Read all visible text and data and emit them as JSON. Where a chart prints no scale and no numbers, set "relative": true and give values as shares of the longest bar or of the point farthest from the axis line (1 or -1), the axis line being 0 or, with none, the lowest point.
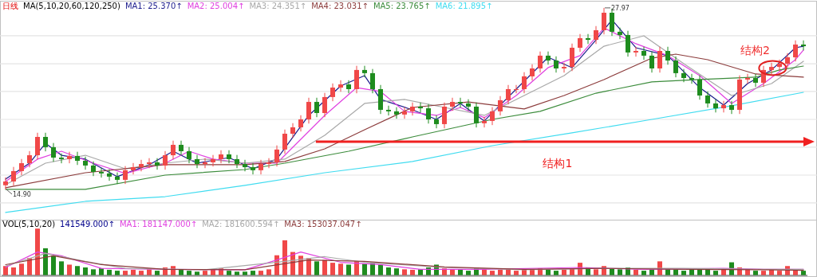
{
  "chart_data": [
    {
      "type": "candlestick",
      "title": "日线",
      "subtitle": "MA(5,10,20,60,120,250)",
      "categories": [
        null,
        null,
        null,
        null,
        null,
        null,
        null,
        null,
        null,
        null,
        null,
        null,
        null,
        null,
        null,
        null,
        null,
        null,
        null,
        null,
        null,
        null,
        null,
        null,
        null,
        null,
        null,
        null,
        null,
        null,
        null,
        null,
        null,
        null,
        null,
        null,
        null,
        null,
        null,
        null,
        null,
        null,
        null,
        null,
        null,
        null,
        null,
        null,
        null,
        null,
        null,
        null,
        null,
        null,
        null,
        null,
        null,
        null,
        null,
        null,
        null,
        null,
        null,
        null,
        null,
        null,
        null,
        null,
        null,
        null,
        null,
        null,
        null,
        null,
        null,
        null,
        null,
        null,
        null,
        null,
        null,
        null,
        null,
        null,
        null,
        null,
        null,
        null,
        null,
        null,
        null,
        null,
        null,
        null,
        null,
        null,
        null,
        null,
        null,
        null,
        null
      ],
      "ohlc": [
        [
          15.2,
          15.77,
          14.9,
          15.47
        ],
        [
          15.47,
          16.52,
          15.17,
          16.22
        ],
        [
          16.22,
          17.09,
          15.92,
          16.79
        ],
        [
          16.79,
          17.66,
          16.49,
          17.36
        ],
        [
          17.36,
          18.98,
          17.06,
          18.68
        ],
        [
          18.68,
          18.98,
          17.64,
          17.94
        ],
        [
          17.94,
          18.24,
          16.89,
          17.19
        ],
        [
          17.19,
          17.49,
          16.78,
          17.08
        ],
        [
          17.08,
          17.61,
          16.78,
          17.31
        ],
        [
          17.31,
          17.61,
          16.66,
          16.96
        ],
        [
          16.96,
          17.26,
          16.32,
          16.62
        ],
        [
          16.62,
          16.92,
          15.86,
          16.16
        ],
        [
          16.16,
          16.46,
          15.75,
          16.05
        ],
        [
          16.05,
          16.35,
          15.52,
          15.82
        ],
        [
          15.82,
          16.12,
          15.29,
          15.59
        ],
        [
          15.59,
          16.58,
          15.29,
          16.28
        ],
        [
          16.28,
          16.8,
          15.98,
          16.5
        ],
        [
          16.5,
          17.03,
          16.2,
          16.73
        ],
        [
          16.73,
          17.15,
          16.43,
          16.85
        ],
        [
          16.85,
          17.15,
          16.32,
          16.62
        ],
        [
          16.62,
          17.66,
          16.32,
          17.36
        ],
        [
          17.36,
          18.41,
          17.06,
          18.11
        ],
        [
          18.11,
          18.41,
          17.35,
          17.65
        ],
        [
          17.65,
          17.95,
          16.78,
          17.08
        ],
        [
          17.08,
          17.38,
          16.43,
          16.73
        ],
        [
          16.73,
          17.15,
          16.43,
          16.85
        ],
        [
          16.85,
          17.38,
          16.55,
          17.08
        ],
        [
          17.08,
          17.72,
          16.78,
          17.42
        ],
        [
          17.42,
          17.72,
          16.78,
          17.08
        ],
        [
          17.08,
          17.38,
          16.43,
          16.73
        ],
        [
          16.73,
          17.03,
          16.2,
          16.5
        ],
        [
          16.5,
          16.8,
          15.98,
          16.28
        ],
        [
          16.28,
          17.03,
          15.98,
          16.73
        ],
        [
          16.73,
          17.15,
          16.43,
          16.85
        ],
        [
          16.85,
          18.07,
          16.55,
          17.77
        ],
        [
          17.77,
          19.21,
          17.47,
          18.91
        ],
        [
          18.91,
          19.67,
          18.61,
          19.37
        ],
        [
          19.37,
          20.24,
          19.07,
          19.94
        ],
        [
          19.94,
          21.5,
          19.64,
          21.2
        ],
        [
          21.2,
          21.5,
          20.1,
          20.4
        ],
        [
          20.4,
          21.85,
          20.1,
          21.55
        ],
        [
          21.55,
          22.53,
          21.25,
          22.23
        ],
        [
          22.23,
          22.76,
          21.93,
          22.46
        ],
        [
          22.46,
          22.76,
          21.82,
          22.12
        ],
        [
          22.12,
          23.8,
          21.82,
          23.5
        ],
        [
          23.5,
          23.8,
          22.97,
          23.27
        ],
        [
          23.27,
          23.57,
          21.82,
          22.12
        ],
        [
          22.12,
          22.42,
          20.33,
          20.63
        ],
        [
          20.63,
          20.93,
          20.22,
          20.52
        ],
        [
          20.52,
          20.82,
          19.99,
          20.29
        ],
        [
          20.29,
          20.82,
          19.99,
          20.52
        ],
        [
          20.52,
          21.16,
          20.22,
          20.86
        ],
        [
          20.86,
          21.16,
          20.44,
          20.74
        ],
        [
          20.74,
          21.04,
          19.64,
          19.94
        ],
        [
          19.94,
          20.24,
          19.3,
          19.6
        ],
        [
          19.6,
          21.16,
          19.3,
          20.86
        ],
        [
          20.86,
          21.5,
          20.56,
          21.2
        ],
        [
          21.2,
          21.5,
          20.79,
          21.09
        ],
        [
          21.09,
          21.39,
          20.56,
          20.86
        ],
        [
          20.86,
          21.16,
          19.36,
          19.66
        ],
        [
          19.66,
          20.13,
          19.36,
          19.83
        ],
        [
          19.83,
          20.82,
          19.53,
          20.52
        ],
        [
          20.52,
          21.62,
          20.22,
          21.32
        ],
        [
          21.32,
          22.42,
          21.02,
          22.12
        ],
        [
          22.12,
          22.42,
          21.82,
          22.12
        ],
        [
          22.12,
          23.34,
          21.82,
          23.04
        ],
        [
          23.04,
          23.91,
          22.74,
          23.61
        ],
        [
          23.61,
          24.83,
          23.31,
          24.53
        ],
        [
          24.53,
          24.83,
          23.88,
          24.18
        ],
        [
          24.18,
          24.48,
          23.31,
          23.61
        ],
        [
          23.61,
          24.02,
          23.31,
          23.72
        ],
        [
          23.72,
          25.4,
          23.42,
          25.1
        ],
        [
          25.1,
          26.09,
          24.8,
          25.79
        ],
        [
          25.79,
          26.09,
          25.37,
          25.67
        ],
        [
          25.67,
          26.66,
          25.37,
          26.36
        ],
        [
          26.36,
          27.97,
          26.06,
          27.62
        ],
        [
          27.62,
          27.92,
          25.95,
          26.25
        ],
        [
          26.25,
          26.55,
          25.72,
          26.02
        ],
        [
          26.02,
          26.32,
          24.46,
          24.76
        ],
        [
          24.76,
          25.17,
          24.46,
          24.87
        ],
        [
          24.87,
          25.17,
          24.23,
          24.53
        ],
        [
          24.53,
          24.83,
          23.31,
          23.61
        ],
        [
          23.61,
          25.17,
          23.31,
          24.87
        ],
        [
          24.87,
          25.17,
          23.88,
          24.18
        ],
        [
          24.18,
          24.48,
          22.97,
          23.27
        ],
        [
          23.27,
          23.57,
          22.62,
          22.92
        ],
        [
          22.92,
          23.22,
          22.51,
          22.81
        ],
        [
          22.81,
          23.11,
          21.36,
          21.66
        ],
        [
          21.66,
          21.96,
          20.79,
          21.09
        ],
        [
          21.09,
          21.39,
          20.44,
          20.74
        ],
        [
          20.74,
          21.27,
          20.44,
          20.97
        ],
        [
          20.97,
          21.27,
          20.33,
          20.63
        ],
        [
          20.63,
          23.11,
          20.33,
          22.81
        ],
        [
          22.81,
          23.22,
          22.51,
          22.92
        ],
        [
          22.92,
          23.22,
          22.28,
          22.58
        ],
        [
          22.58,
          23.8,
          22.28,
          23.5
        ],
        [
          23.5,
          24.02,
          23.2,
          23.72
        ],
        [
          23.72,
          24.25,
          23.42,
          23.95
        ],
        [
          23.95,
          24.71,
          23.65,
          24.41
        ],
        [
          24.41,
          25.63,
          24.11,
          25.33
        ],
        [
          25.33,
          25.63,
          24.91,
          25.21
        ]
      ],
      "colors": [
        "#f04848",
        "#f04848",
        "#f04848",
        "#f04848",
        "#f04848",
        "#1e8c1e",
        "#1e8c1e",
        "#1e8c1e",
        "#f04848",
        "#1e8c1e",
        "#1e8c1e",
        "#1e8c1e",
        "#1e8c1e",
        "#1e8c1e",
        "#1e8c1e",
        "#f04848",
        "#f04848",
        "#f04848",
        "#f04848",
        "#1e8c1e",
        "#f04848",
        "#f04848",
        "#1e8c1e",
        "#1e8c1e",
        "#1e8c1e",
        "#f04848",
        "#f04848",
        "#f04848",
        "#1e8c1e",
        "#1e8c1e",
        "#1e8c1e",
        "#1e8c1e",
        "#f04848",
        "#f04848",
        "#f04848",
        "#f04848",
        "#f04848",
        "#f04848",
        "#f04848",
        "#1e8c1e",
        "#f04848",
        "#f04848",
        "#f04848",
        "#1e8c1e",
        "#f04848",
        "#1e8c1e",
        "#1e8c1e",
        "#1e8c1e",
        "#1e8c1e",
        "#1e8c1e",
        "#f04848",
        "#f04848",
        "#1e8c1e",
        "#1e8c1e",
        "#1e8c1e",
        "#f04848",
        "#f04848",
        "#1e8c1e",
        "#1e8c1e",
        "#1e8c1e",
        "#f04848",
        "#f04848",
        "#f04848",
        "#f04848",
        "#f04848",
        "#f04848",
        "#f04848",
        "#f04848",
        "#1e8c1e",
        "#1e8c1e",
        "#f04848",
        "#f04848",
        "#f04848",
        "#1e8c1e",
        "#f04848",
        "#f04848",
        "#1e8c1e",
        "#1e8c1e",
        "#1e8c1e",
        "#f04848",
        "#1e8c1e",
        "#1e8c1e",
        "#f04848",
        "#1e8c1e",
        "#1e8c1e",
        "#1e8c1e",
        "#1e8c1e",
        "#1e8c1e",
        "#1e8c1e",
        "#1e8c1e",
        "#f04848",
        "#1e8c1e",
        "#f04848",
        "#f04848",
        "#1e8c1e",
        "#f04848",
        "#f04848",
        "#f04848",
        "#f04848",
        "#f04848",
        "#1e8c1e"
      ],
      "series": [
        {
          "name": "MA1: 25.370↑",
          "type": "line",
          "color": "#1c1c8c",
          "values": [
            15.64,
            null,
            null,
            16.79,
            null,
            18.22,
            null,
            17.36,
            null,
            null,
            17.08,
            null,
            null,
            null,
            15.82,
            null,
            null,
            null,
            16.68,
            null,
            null,
            17.65,
            null,
            null,
            16.79,
            null,
            null,
            null,
            17.19,
            null,
            null,
            16.39,
            null,
            null,
            17.08,
            null,
            null,
            null,
            20.23,
            null,
            null,
            null,
            22.35,
            null,
            null,
            23.09,
            null,
            21.38,
            null,
            null,
            null,
            20.63,
            null,
            null,
            19.94,
            null,
            null,
            21.09,
            null,
            null,
            19.83,
            null,
            null,
            null,
            22.12,
            null,
            null,
            null,
            24.41,
            null,
            null,
            23.67,
            null,
            null,
            25.67,
            null,
            27.11,
            null,
            null,
            25.1,
            null,
            null,
            null,
            24.53,
            null,
            null,
            null,
            22.23,
            null,
            null,
            20.97,
            null,
            null,
            22.52,
            null,
            null,
            23.5,
            null,
            null,
            25.1,
            25.21
          ]
        },
        {
          "name": "MA2: 25.004↑",
          "type": "line",
          "color": "#e040e0",
          "values": [
            15.47,
            null,
            null,
            null,
            17.08,
            null,
            null,
            17.65,
            null,
            null,
            null,
            16.79,
            null,
            null,
            null,
            16.05,
            null,
            null,
            null,
            null,
            16.79,
            null,
            null,
            17.65,
            null,
            null,
            17.08,
            null,
            null,
            null,
            16.79,
            null,
            null,
            null,
            16.79,
            null,
            null,
            18.51,
            null,
            null,
            20.23,
            null,
            null,
            null,
            22.23,
            null,
            null,
            21.95,
            null,
            null,
            20.52,
            null,
            null,
            null,
            20.23,
            null,
            null,
            20.8,
            null,
            null,
            20.06,
            null,
            null,
            null,
            21.66,
            null,
            null,
            null,
            23.67,
            null,
            null,
            null,
            24.53,
            null,
            null,
            26.53,
            null,
            null,
            null,
            25.39,
            null,
            null,
            null,
            24.53,
            null,
            null,
            null,
            23.09,
            null,
            null,
            null,
            21.09,
            null,
            null,
            null,
            22.52,
            null,
            null,
            null,
            24.24,
            24.93
          ]
        },
        {
          "name": "MA3: 24.351↑",
          "type": "line",
          "color": "#a8a8a8",
          "values": [
            15.24,
            null,
            null,
            null,
            null,
            16.79,
            null,
            null,
            null,
            null,
            17.36,
            null,
            null,
            null,
            null,
            16.39,
            null,
            null,
            null,
            null,
            16.79,
            null,
            null,
            null,
            null,
            17.08,
            null,
            null,
            null,
            null,
            16.79,
            null,
            null,
            null,
            null,
            17.08,
            null,
            null,
            null,
            null,
            18.8,
            null,
            null,
            null,
            null,
            21.09,
            null,
            null,
            null,
            null,
            21.38,
            null,
            null,
            null,
            null,
            20.8,
            null,
            null,
            null,
            null,
            20.23,
            null,
            null,
            null,
            null,
            21.66,
            null,
            null,
            null,
            null,
            23.09,
            null,
            null,
            null,
            null,
            25.21,
            null,
            null,
            null,
            null,
            25.96,
            null,
            null,
            null,
            null,
            23.95,
            null,
            null,
            null,
            null,
            null,
            21.66,
            null,
            null,
            null,
            null,
            22.52,
            null,
            null,
            null,
            24.13
          ]
        },
        {
          "name": "MA4: 23.031↑",
          "type": "line",
          "color": "#8c3c3c",
          "values": [
            15.02,
            null,
            null,
            null,
            null,
            null,
            null,
            null,
            null,
            null,
            16.1,
            null,
            null,
            null,
            null,
            null,
            null,
            null,
            null,
            null,
            16.68,
            null,
            null,
            null,
            null,
            null,
            null,
            null,
            null,
            null,
            16.68,
            null,
            null,
            null,
            null,
            16.91,
            null,
            null,
            null,
            null,
            17.82,
            null,
            null,
            null,
            null,
            19.2,
            null,
            null,
            null,
            null,
            null,
            20.8,
            null,
            null,
            null,
            null,
            null,
            null,
            21.2,
            null,
            null,
            null,
            null,
            null,
            null,
            20.69,
            null,
            null,
            null,
            null,
            21.66,
            null,
            null,
            null,
            null,
            22.81,
            null,
            null,
            null,
            null,
            null,
            24.35,
            null,
            null,
            24.64,
            null,
            null,
            null,
            24.24,
            null,
            null,
            null,
            null,
            null,
            23.21,
            null,
            null,
            null,
            null,
            null,
            22.98
          ]
        },
        {
          "name": "MA5: 23.765↑",
          "type": "line",
          "color": "#3c8c3c",
          "values": [
            14.9,
            null,
            null,
            null,
            null,
            null,
            null,
            null,
            null,
            null,
            14.9,
            null,
            null,
            null,
            null,
            null,
            null,
            null,
            null,
            null,
            15.93,
            null,
            null,
            null,
            null,
            null,
            null,
            null,
            null,
            null,
            16.33,
            null,
            null,
            null,
            null,
            16.79,
            null,
            null,
            null,
            null,
            null,
            null,
            null,
            17.65,
            null,
            null,
            null,
            null,
            null,
            null,
            null,
            18.68,
            null,
            null,
            null,
            null,
            null,
            null,
            null,
            null,
            null,
            19.94,
            null,
            null,
            null,
            null,
            null,
            20.52,
            null,
            null,
            null,
            null,
            null,
            null,
            21.83,
            null,
            null,
            null,
            null,
            null,
            null,
            22.64,
            null,
            null,
            null,
            null,
            null,
            22.81,
            null,
            null,
            null,
            null,
            null,
            null,
            22.98,
            null,
            null,
            23.5,
            null,
            null,
            23.78
          ]
        },
        {
          "name": "MA6: 21.895↑",
          "type": "line",
          "color": "#40dcf0",
          "values": [
            13.24,
            null,
            null,
            null,
            null,
            null,
            null,
            null,
            null,
            null,
            14.04,
            null,
            null,
            null,
            null,
            null,
            null,
            null,
            null,
            null,
            14.38,
            null,
            null,
            null,
            null,
            null,
            null,
            null,
            null,
            null,
            15.19,
            null,
            null,
            null,
            null,
            null,
            null,
            null,
            null,
            null,
            16.1,
            null,
            null,
            null,
            null,
            null,
            null,
            null,
            null,
            null,
            null,
            16.91,
            null,
            null,
            null,
            null,
            null,
            null,
            null,
            null,
            null,
            18.05,
            null,
            null,
            null,
            null,
            null,
            null,
            null,
            null,
            null,
            18.97,
            null,
            null,
            null,
            null,
            null,
            null,
            null,
            null,
            null,
            19.94,
            null,
            null,
            null,
            null,
            null,
            null,
            null,
            null,
            null,
            20.92,
            null,
            null,
            null,
            null,
            null,
            null,
            null,
            null,
            21.89
          ]
        }
      ],
      "ylim": [
        12.72,
        28.48
      ],
      "yticks": [
        {
          "value": 13.93,
          "label": null
        },
        {
          "value": 15.93,
          "label": null
        },
        {
          "value": 17.94,
          "label": null
        },
        {
          "value": 19.94,
          "label": null
        },
        {
          "value": 21.95,
          "label": null
        },
        {
          "value": 23.95,
          "label": null
        },
        {
          "value": 25.96,
          "label": null
        }
      ],
      "grid": "y",
      "ref_lines": [
        {
          "axis": "y",
          "value": 18.34,
          "label": "结构1",
          "color": "#f02020"
        }
      ],
      "annotations": [
        "27.97",
        "14.90",
        "结构2"
      ]
    },
    {
      "type": "bar",
      "title": "VOL(5,10,20)",
      "relative": true,
      "categories": [
        null,
        null,
        null,
        null,
        null,
        null,
        null,
        null,
        null,
        null,
        null,
        null,
        null,
        null,
        null,
        null,
        null,
        null,
        null,
        null,
        null,
        null,
        null,
        null,
        null,
        null,
        null,
        null,
        null,
        null,
        null,
        null,
        null,
        null,
        null,
        null,
        null,
        null,
        null,
        null,
        null,
        null,
        null,
        null,
        null,
        null,
        null,
        null,
        null,
        null,
        null,
        null,
        null,
        null,
        null,
        null,
        null,
        null,
        null,
        null,
        null,
        null,
        null,
        null,
        null,
        null,
        null,
        null,
        null,
        null,
        null,
        null,
        null,
        null,
        null,
        null,
        null,
        null,
        null,
        null,
        null,
        null,
        null,
        null,
        null,
        null,
        null,
        null,
        null,
        null,
        null,
        null,
        null,
        null,
        null,
        null,
        null,
        null,
        null,
        null,
        null
      ],
      "series": [
        {
          "name": "141549.000↑",
          "type": "bar",
          "values": [
            0.2,
            0.17,
            0.25,
            0.37,
            1,
            0.58,
            0.42,
            0.3,
            0.23,
            0.2,
            0.17,
            0.13,
            0.15,
            0.12,
            0.1,
            0.1,
            0.12,
            0.1,
            0.13,
            0.1,
            0.17,
            0.2,
            0.13,
            0.1,
            0.08,
            0.1,
            0.12,
            0.15,
            0.1,
            0.08,
            0.08,
            0.1,
            0.1,
            0.13,
            0.43,
            0.75,
            0.5,
            0.42,
            0.37,
            0.3,
            0.33,
            0.27,
            0.25,
            0.23,
            0.3,
            0.25,
            0.27,
            0.23,
            0.17,
            0.15,
            0.13,
            0.12,
            0.13,
            0.17,
            0.23,
            0.15,
            0.13,
            0.12,
            0.1,
            0.15,
            0.12,
            0.1,
            0.12,
            0.13,
            0.1,
            0.12,
            0.13,
            0.15,
            0.12,
            0.1,
            0.12,
            0.15,
            0.27,
            0.17,
            0.13,
            0.2,
            0.15,
            0.13,
            0.17,
            0.12,
            0.1,
            0.12,
            0.3,
            0.13,
            0.12,
            0.1,
            0.15,
            0.13,
            0.12,
            0.1,
            0.13,
            0.28,
            0.17,
            0.12,
            0.1,
            0.1,
            0.12,
            0.1,
            0.2,
            0.12,
            0.1
          ],
          "colors": [
            "#f04848",
            "#f04848",
            "#f04848",
            "#f04848",
            "#f04848",
            "#1e8c1e",
            "#1e8c1e",
            "#1e8c1e",
            "#f04848",
            "#1e8c1e",
            "#1e8c1e",
            "#1e8c1e",
            "#1e8c1e",
            "#1e8c1e",
            "#1e8c1e",
            "#f04848",
            "#f04848",
            "#f04848",
            "#f04848",
            "#1e8c1e",
            "#f04848",
            "#f04848",
            "#1e8c1e",
            "#1e8c1e",
            "#1e8c1e",
            "#f04848",
            "#f04848",
            "#f04848",
            "#1e8c1e",
            "#1e8c1e",
            "#1e8c1e",
            "#1e8c1e",
            "#f04848",
            "#f04848",
            "#f04848",
            "#f04848",
            "#f04848",
            "#f04848",
            "#f04848",
            "#1e8c1e",
            "#f04848",
            "#f04848",
            "#f04848",
            "#1e8c1e",
            "#f04848",
            "#1e8c1e",
            "#1e8c1e",
            "#1e8c1e",
            "#1e8c1e",
            "#1e8c1e",
            "#f04848",
            "#f04848",
            "#1e8c1e",
            "#1e8c1e",
            "#1e8c1e",
            "#f04848",
            "#f04848",
            "#1e8c1e",
            "#1e8c1e",
            "#1e8c1e",
            "#f04848",
            "#f04848",
            "#f04848",
            "#f04848",
            "#f04848",
            "#f04848",
            "#f04848",
            "#f04848",
            "#1e8c1e",
            "#1e8c1e",
            "#f04848",
            "#f04848",
            "#f04848",
            "#1e8c1e",
            "#f04848",
            "#f04848",
            "#1e8c1e",
            "#1e8c1e",
            "#1e8c1e",
            "#f04848",
            "#1e8c1e",
            "#1e8c1e",
            "#f04848",
            "#1e8c1e",
            "#1e8c1e",
            "#1e8c1e",
            "#1e8c1e",
            "#1e8c1e",
            "#1e8c1e",
            "#1e8c1e",
            "#f04848",
            "#1e8c1e",
            "#f04848",
            "#f04848",
            "#1e8c1e",
            "#f04848",
            "#f04848",
            "#f04848",
            "#f04848",
            "#f04848",
            "#1e8c1e"
          ]
        }
      ]
    },
    {
      "type": "line",
      "relative": true,
      "categories": [
        null,
        null,
        null,
        null,
        null,
        null,
        null,
        null,
        null,
        null,
        null,
        null,
        null,
        null,
        null,
        null,
        null,
        null,
        null,
        null,
        null,
        null,
        null,
        null,
        null,
        null,
        null,
        null,
        null,
        null,
        null,
        null,
        null,
        null,
        null,
        null,
        null,
        null,
        null,
        null,
        null,
        null,
        null,
        null,
        null,
        null,
        null,
        null,
        null,
        null,
        null,
        null,
        null,
        null,
        null,
        null,
        null,
        null,
        null,
        null,
        null,
        null,
        null,
        null,
        null,
        null,
        null,
        null,
        null,
        null,
        null,
        null,
        null,
        null,
        null,
        null,
        null,
        null,
        null,
        null,
        null,
        null,
        null,
        null,
        null,
        null,
        null,
        null,
        null,
        null,
        null,
        null,
        null,
        null,
        null,
        null,
        null,
        null,
        null,
        null,
        null
      ],
      "series": [
        {
          "name": "MA1: 181147.000↑",
          "color": "#e040e0",
          "values": [
            0.34,
            null,
            null,
            null,
            1,
            null,
            null,
            0.84,
            null,
            null,
            null,
            null,
            0.3,
            null,
            null,
            null,
            null,
            null,
            null,
            null,
            0.26,
            null,
            null,
            null,
            null,
            null,
            null,
            null,
            null,
            null,
            0.24,
            null,
            null,
            null,
            0.66,
            null,
            null,
            1,
            null,
            null,
            null,
            null,
            0.56,
            null,
            null,
            null,
            null,
            0.46,
            null,
            null,
            null,
            null,
            0.26,
            null,
            null,
            null,
            null,
            null,
            null,
            null,
            0.26,
            null,
            null,
            null,
            null,
            null,
            null,
            null,
            null,
            null,
            null,
            null,
            0.34,
            null,
            null,
            null,
            null,
            null,
            null,
            null,
            0.26,
            null,
            null,
            null,
            null,
            null,
            null,
            null,
            null,
            null,
            0.3,
            null,
            null,
            null,
            null,
            0.26,
            null,
            null,
            null,
            null,
            0.26
          ]
        },
        {
          "name": "MA2: 181600.594↑",
          "color": "#a8a8a8",
          "values": [
            0.4,
            null,
            null,
            null,
            null,
            0.94,
            null,
            null,
            null,
            null,
            0.6,
            null,
            null,
            null,
            null,
            0.3,
            null,
            null,
            null,
            null,
            null,
            null,
            null,
            null,
            null,
            0.24,
            null,
            null,
            null,
            null,
            null,
            null,
            null,
            null,
            null,
            0.6,
            null,
            null,
            null,
            null,
            0.8,
            null,
            null,
            null,
            null,
            0.56,
            null,
            null,
            null,
            null,
            null,
            null,
            null,
            null,
            null,
            0.34,
            null,
            null,
            null,
            null,
            null,
            null,
            null,
            null,
            null,
            0.24,
            null,
            null,
            null,
            null,
            null,
            null,
            null,
            null,
            null,
            0.3,
            null,
            null,
            null,
            null,
            null,
            null,
            null,
            null,
            null,
            0.3,
            null,
            null,
            null,
            null,
            null,
            null,
            null,
            null,
            null,
            0.26,
            null,
            null,
            null,
            null,
            0.26
          ]
        },
        {
          "name": "MA3: 153037.047↑",
          "color": "#8c3c3c",
          "values": [
            0.46,
            null,
            null,
            null,
            null,
            null,
            0.84,
            null,
            null,
            null,
            null,
            null,
            0.46,
            null,
            null,
            null,
            null,
            null,
            null,
            null,
            0.26,
            null,
            null,
            null,
            null,
            null,
            null,
            null,
            null,
            null,
            0.24,
            null,
            null,
            null,
            null,
            null,
            null,
            null,
            0.66,
            null,
            null,
            null,
            null,
            null,
            null,
            0.6,
            null,
            null,
            null,
            null,
            null,
            null,
            null,
            null,
            null,
            0.36,
            null,
            null,
            null,
            null,
            null,
            null,
            null,
            null,
            null,
            0.26,
            null,
            null,
            null,
            null,
            null,
            null,
            null,
            null,
            null,
            0.3,
            null,
            null,
            null,
            null,
            null,
            null,
            null,
            null,
            null,
            0.26,
            null,
            null,
            null,
            null,
            null,
            null,
            null,
            null,
            null,
            0.24,
            null,
            null,
            null,
            null,
            0.22
          ]
        }
      ]
    }
  ]
}
